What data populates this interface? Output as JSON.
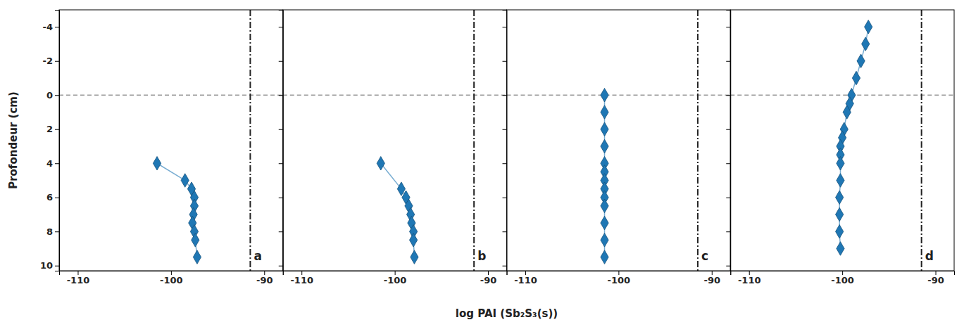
{
  "chart_data": [
    {
      "type": "line",
      "xlabel": "log PAI (Sb₂S₃(s))",
      "ylabel": "Profondeur (cm)",
      "annotations": [
        "a"
      ],
      "x": [
        -101.5,
        -98.5,
        -97.8,
        -97.5,
        -97.5,
        -97.6,
        -97.7,
        -97.5,
        -97.4,
        -97.2
      ],
      "series": [
        {
          "values": [
            4.0,
            5.0,
            5.5,
            6.0,
            6.5,
            7.0,
            7.5,
            8.0,
            8.5,
            9.5
          ],
          "marker": "diamond"
        }
      ],
      "reference_lines": [
        {
          "axis": "y",
          "value": 0,
          "line_style": "dashed"
        },
        {
          "axis": "x",
          "value": -91.5,
          "line_style": "dashdot"
        }
      ],
      "xlim": [
        -112,
        -88
      ],
      "xticks": [
        -110,
        -100,
        -90
      ],
      "ylim": [
        10.3,
        -5.0
      ],
      "yticks": [
        -4,
        -2,
        0,
        2,
        4,
        6,
        8,
        10
      ]
    },
    {
      "type": "line",
      "annotations": [
        "b"
      ],
      "x": [
        -101.5,
        -99.3,
        -98.8,
        -98.5,
        -98.3,
        -98.2,
        -98.0,
        -98.0,
        -97.9
      ],
      "series": [
        {
          "values": [
            4.0,
            5.5,
            6.0,
            6.5,
            7.0,
            7.5,
            8.0,
            8.5,
            9.5
          ],
          "marker": "diamond"
        }
      ],
      "reference_lines": [
        {
          "axis": "y",
          "value": 0,
          "line_style": "dashed"
        },
        {
          "axis": "x",
          "value": -91.5,
          "line_style": "dashdot"
        }
      ],
      "xlim": [
        -112,
        -88
      ],
      "xticks": [
        -110,
        -100,
        -90
      ],
      "ylim": [
        10.3,
        -5.0
      ],
      "yticks": [
        -4,
        -2,
        0,
        2,
        4,
        6,
        8,
        10
      ],
      "tick_labels": "x"
    },
    {
      "type": "line",
      "annotations": [
        "c"
      ],
      "x": [
        -101.5,
        -101.5,
        -101.5,
        -101.5,
        -101.5,
        -101.5,
        -101.5,
        -101.5,
        -101.5,
        -101.5,
        -101.5,
        -101.5,
        -101.5
      ],
      "series": [
        {
          "values": [
            0.0,
            1.0,
            2.0,
            3.0,
            4.0,
            4.5,
            5.0,
            5.5,
            6.0,
            6.5,
            7.5,
            8.5,
            9.5
          ],
          "marker": "diamond"
        }
      ],
      "reference_lines": [
        {
          "axis": "y",
          "value": 0,
          "line_style": "dashed"
        },
        {
          "axis": "x",
          "value": -91.5,
          "line_style": "dashdot"
        }
      ],
      "xlim": [
        -112,
        -88
      ],
      "xticks": [
        -110,
        -100,
        -90
      ],
      "ylim": [
        10.3,
        -5.0
      ],
      "yticks": [
        -4,
        -2,
        0,
        2,
        4,
        6,
        8,
        10
      ],
      "tick_labels": "x"
    },
    {
      "type": "line",
      "annotations": [
        "d"
      ],
      "x": [
        -97.2,
        -97.5,
        -98.0,
        -98.5,
        -99.0,
        -99.2,
        -99.5,
        -99.8,
        -100.0,
        -100.2,
        -100.2,
        -100.2,
        -100.2,
        -100.3,
        -100.3,
        -100.3,
        -100.2
      ],
      "series": [
        {
          "values": [
            -4.0,
            -3.0,
            -2.0,
            -1.0,
            0.0,
            0.5,
            1.0,
            2.0,
            2.5,
            3.0,
            3.5,
            4.0,
            5.0,
            6.0,
            7.0,
            8.0,
            9.0
          ],
          "marker": "diamond"
        }
      ],
      "reference_lines": [
        {
          "axis": "y",
          "value": 0,
          "line_style": "dashed"
        },
        {
          "axis": "x",
          "value": -91.5,
          "line_style": "dashdot"
        }
      ],
      "xlim": [
        -112,
        -88
      ],
      "xticks": [
        -110,
        -100,
        -90
      ],
      "ylim": [
        10.3,
        -5.0
      ],
      "yticks": [
        -4,
        -2,
        0,
        2,
        4,
        6,
        8,
        10
      ],
      "tick_labels": "x"
    }
  ]
}
